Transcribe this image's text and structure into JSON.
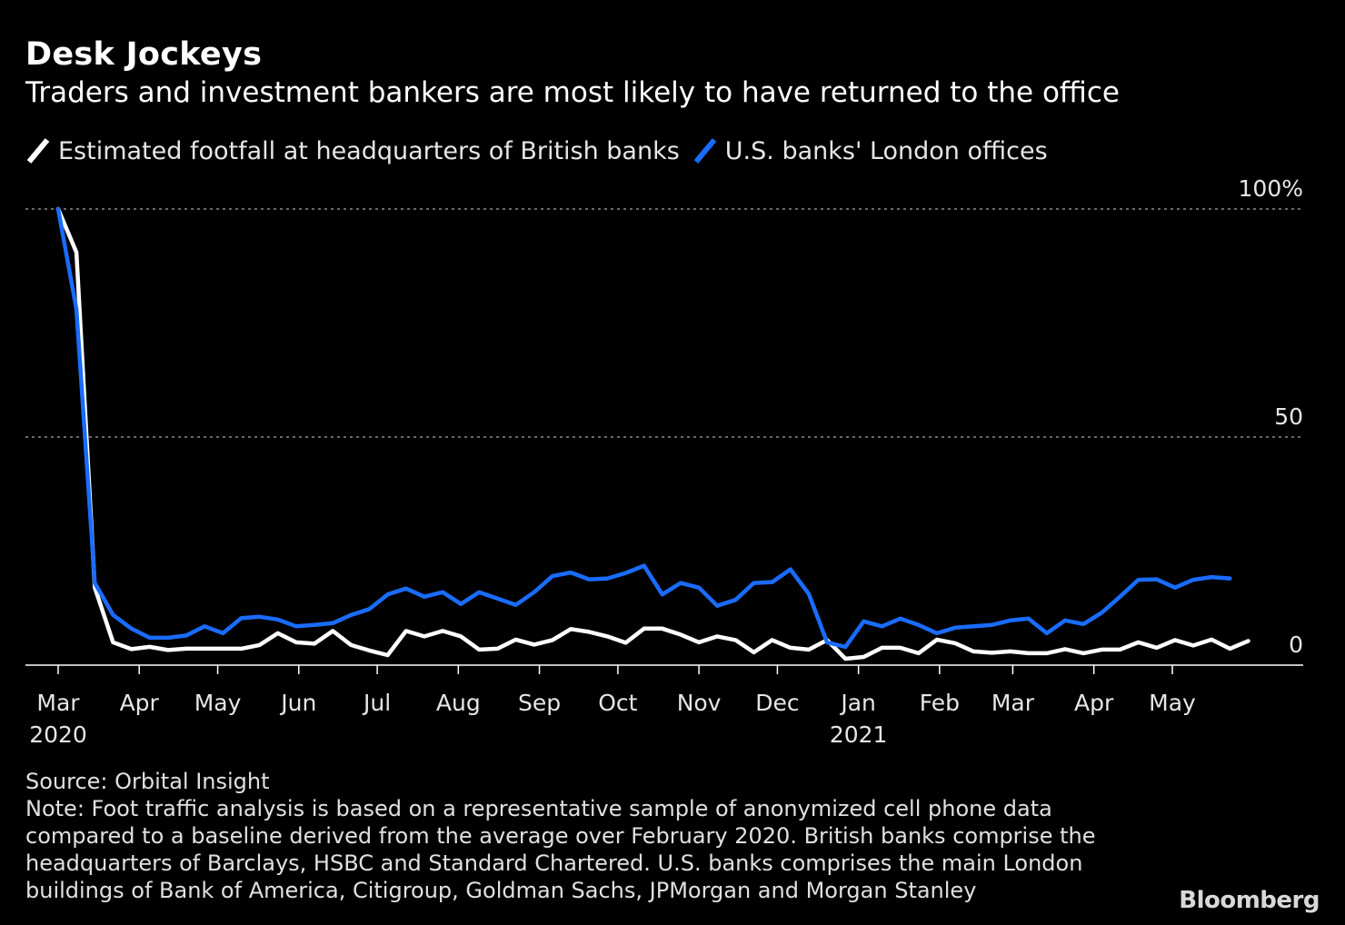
{
  "title": "Desk Jockeys",
  "subtitle": "Traders and investment bankers are most likely to have returned to the office",
  "legend": [
    {
      "label": "Estimated footfall at headquarters of British banks",
      "color": "#ffffff"
    },
    {
      "label": "U.S. banks' London offices",
      "color": "#1a6cff"
    }
  ],
  "source": "Source: Orbital Insight",
  "note": "Note: Foot traffic analysis is based on a representative sample of anonymized cell phone data\ncompared to a baseline derived from the average over February 2020. British banks comprise the\nheadquarters of Barclays, HSBC and Standard Chartered. U.S. banks comprises the main London\nbuildings of Bank of America, Citigroup, Goldman Sachs, JPMorgan and Morgan Stanley",
  "brand": "Bloomberg",
  "chart_data": {
    "type": "line",
    "ylim": [
      0,
      100
    ],
    "y_ticks": [
      {
        "value": 100,
        "label": "100%"
      },
      {
        "value": 50,
        "label": "50"
      },
      {
        "value": 0,
        "label": "0"
      }
    ],
    "x_ticks": [
      {
        "date": "2020-03-01",
        "label": "Mar",
        "sublabel": "2020"
      },
      {
        "date": "2020-04-01",
        "label": "Apr",
        "sublabel": ""
      },
      {
        "date": "2020-05-01",
        "label": "May",
        "sublabel": ""
      },
      {
        "date": "2020-06-01",
        "label": "Jun",
        "sublabel": ""
      },
      {
        "date": "2020-07-01",
        "label": "Jul",
        "sublabel": ""
      },
      {
        "date": "2020-08-01",
        "label": "Aug",
        "sublabel": ""
      },
      {
        "date": "2020-09-01",
        "label": "Sep",
        "sublabel": ""
      },
      {
        "date": "2020-10-01",
        "label": "Oct",
        "sublabel": ""
      },
      {
        "date": "2020-11-01",
        "label": "Nov",
        "sublabel": ""
      },
      {
        "date": "2020-12-01",
        "label": "Dec",
        "sublabel": ""
      },
      {
        "date": "2021-01-01",
        "label": "Jan",
        "sublabel": "2021"
      },
      {
        "date": "2021-02-01",
        "label": "Feb",
        "sublabel": ""
      },
      {
        "date": "2021-03-01",
        "label": "Mar",
        "sublabel": ""
      },
      {
        "date": "2021-04-01",
        "label": "Apr",
        "sublabel": ""
      },
      {
        "date": "2021-05-01",
        "label": "May",
        "sublabel": ""
      }
    ],
    "x_range": [
      "2020-02-23",
      "2021-06-18"
    ],
    "series": [
      {
        "name": "Estimated footfall at headquarters of British banks",
        "color": "#ffffff",
        "points": [
          [
            "2020-03-01",
            100
          ],
          [
            "2020-03-08",
            90.5
          ],
          [
            "2020-03-15",
            17
          ],
          [
            "2020-03-22",
            5
          ],
          [
            "2020-03-29",
            3.5
          ],
          [
            "2020-04-05",
            4
          ],
          [
            "2020-04-12",
            3.3
          ],
          [
            "2020-04-19",
            3.6
          ],
          [
            "2020-04-26",
            3.6
          ],
          [
            "2020-05-03",
            3.6
          ],
          [
            "2020-05-10",
            3.6
          ],
          [
            "2020-05-17",
            4.4
          ],
          [
            "2020-05-24",
            7
          ],
          [
            "2020-05-31",
            5
          ],
          [
            "2020-06-07",
            4.7
          ],
          [
            "2020-06-14",
            7.5
          ],
          [
            "2020-06-21",
            4.4
          ],
          [
            "2020-06-28",
            3.2
          ],
          [
            "2020-07-05",
            2.2
          ],
          [
            "2020-07-12",
            7.5
          ],
          [
            "2020-07-19",
            6.3
          ],
          [
            "2020-07-26",
            7.5
          ],
          [
            "2020-08-02",
            6.3
          ],
          [
            "2020-08-09",
            3.4
          ],
          [
            "2020-08-16",
            3.6
          ],
          [
            "2020-08-23",
            5.6
          ],
          [
            "2020-08-30",
            4.5
          ],
          [
            "2020-09-06",
            5.5
          ],
          [
            "2020-09-13",
            7.9
          ],
          [
            "2020-09-20",
            7.3
          ],
          [
            "2020-09-27",
            6.3
          ],
          [
            "2020-10-04",
            4.9
          ],
          [
            "2020-10-11",
            8
          ],
          [
            "2020-10-18",
            8
          ],
          [
            "2020-10-25",
            6.7
          ],
          [
            "2020-11-01",
            5
          ],
          [
            "2020-11-08",
            6.3
          ],
          [
            "2020-11-15",
            5.5
          ],
          [
            "2020-11-22",
            2.8
          ],
          [
            "2020-11-29",
            5.5
          ],
          [
            "2020-12-06",
            3.8
          ],
          [
            "2020-12-13",
            3.4
          ],
          [
            "2020-12-20",
            5.5
          ],
          [
            "2020-12-27",
            1.4
          ],
          [
            "2021-01-03",
            1.8
          ],
          [
            "2021-01-10",
            3.8
          ],
          [
            "2021-01-17",
            3.8
          ],
          [
            "2021-01-24",
            2.6
          ],
          [
            "2021-01-31",
            5.6
          ],
          [
            "2021-02-07",
            4.8
          ],
          [
            "2021-02-14",
            3
          ],
          [
            "2021-02-21",
            2.7
          ],
          [
            "2021-02-28",
            3
          ],
          [
            "2021-03-07",
            2.6
          ],
          [
            "2021-03-14",
            2.6
          ],
          [
            "2021-03-21",
            3.5
          ],
          [
            "2021-03-28",
            2.6
          ],
          [
            "2021-04-04",
            3.4
          ],
          [
            "2021-04-11",
            3.4
          ],
          [
            "2021-04-18",
            5
          ],
          [
            "2021-04-25",
            3.8
          ],
          [
            "2021-05-02",
            5.5
          ],
          [
            "2021-05-09",
            4.3
          ],
          [
            "2021-05-16",
            5.6
          ],
          [
            "2021-05-23",
            3.6
          ],
          [
            "2021-05-30",
            5.3
          ]
        ]
      },
      {
        "name": "U.S. banks' London offices",
        "color": "#1a6cff",
        "points": [
          [
            "2020-03-01",
            100
          ],
          [
            "2020-03-08",
            78
          ],
          [
            "2020-03-15",
            18
          ],
          [
            "2020-03-22",
            11
          ],
          [
            "2020-03-29",
            8
          ],
          [
            "2020-04-05",
            6
          ],
          [
            "2020-04-12",
            6
          ],
          [
            "2020-04-19",
            6.5
          ],
          [
            "2020-04-26",
            8.5
          ],
          [
            "2020-05-03",
            7
          ],
          [
            "2020-05-10",
            10.3
          ],
          [
            "2020-05-17",
            10.6
          ],
          [
            "2020-05-24",
            10
          ],
          [
            "2020-05-31",
            8.5
          ],
          [
            "2020-06-07",
            8.8
          ],
          [
            "2020-06-14",
            9.2
          ],
          [
            "2020-06-21",
            11
          ],
          [
            "2020-06-28",
            12.3
          ],
          [
            "2020-07-05",
            15.5
          ],
          [
            "2020-07-12",
            16.8
          ],
          [
            "2020-07-19",
            15
          ],
          [
            "2020-07-26",
            16
          ],
          [
            "2020-08-02",
            13.4
          ],
          [
            "2020-08-09",
            16
          ],
          [
            "2020-08-16",
            14.6
          ],
          [
            "2020-08-23",
            13.2
          ],
          [
            "2020-08-30",
            16
          ],
          [
            "2020-09-06",
            19.5
          ],
          [
            "2020-09-13",
            20.3
          ],
          [
            "2020-09-20",
            18.8
          ],
          [
            "2020-09-27",
            19
          ],
          [
            "2020-10-04",
            20.2
          ],
          [
            "2020-10-11",
            21.8
          ],
          [
            "2020-10-18",
            15.5
          ],
          [
            "2020-10-25",
            18
          ],
          [
            "2020-11-01",
            17
          ],
          [
            "2020-11-08",
            13
          ],
          [
            "2020-11-15",
            14.3
          ],
          [
            "2020-11-22",
            18
          ],
          [
            "2020-11-29",
            18.2
          ],
          [
            "2020-12-06",
            21
          ],
          [
            "2020-12-13",
            15.6
          ],
          [
            "2020-12-20",
            5
          ],
          [
            "2020-12-27",
            4
          ],
          [
            "2021-01-03",
            9.6
          ],
          [
            "2021-01-10",
            8.5
          ],
          [
            "2021-01-17",
            10.2
          ],
          [
            "2021-01-24",
            8.8
          ],
          [
            "2021-01-31",
            7
          ],
          [
            "2021-02-07",
            8.2
          ],
          [
            "2021-02-14",
            8.5
          ],
          [
            "2021-02-21",
            8.8
          ],
          [
            "2021-02-28",
            9.8
          ],
          [
            "2021-03-07",
            10.2
          ],
          [
            "2021-03-14",
            7
          ],
          [
            "2021-03-21",
            9.8
          ],
          [
            "2021-03-28",
            9
          ],
          [
            "2021-04-04",
            11.5
          ],
          [
            "2021-04-11",
            15
          ],
          [
            "2021-04-18",
            18.7
          ],
          [
            "2021-04-25",
            18.8
          ],
          [
            "2021-05-02",
            17
          ],
          [
            "2021-05-09",
            18.7
          ],
          [
            "2021-05-16",
            19.3
          ],
          [
            "2021-05-23",
            19
          ]
        ]
      }
    ]
  }
}
